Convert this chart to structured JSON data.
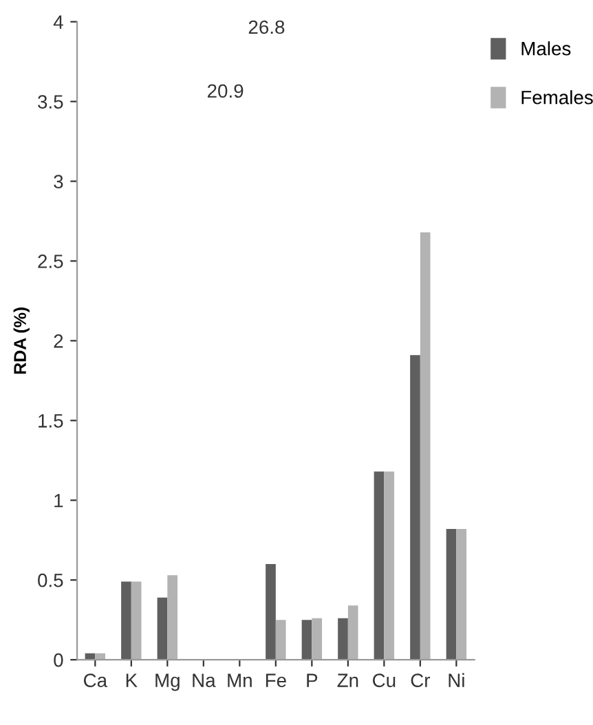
{
  "chart_data": {
    "type": "bar",
    "ylabel": "RDA (%)",
    "categories": [
      "Ca",
      "K",
      "Mg",
      "Na",
      "Mn",
      "Fe",
      "P",
      "Zn",
      "Cu",
      "Cr",
      "Ni"
    ],
    "series": [
      {
        "name": "Males",
        "color": "#5f5f5f",
        "values": [
          0.04,
          0.49,
          0.39,
          0,
          null,
          0.6,
          0.25,
          0.26,
          1.18,
          1.91,
          0.82
        ]
      },
      {
        "name": "Females",
        "color": "#b3b3b3",
        "values": [
          0.04,
          0.49,
          0.53,
          0,
          null,
          0.25,
          0.26,
          0.34,
          1.18,
          2.68,
          0.82
        ]
      }
    ],
    "annotations": [
      "20.9",
      "26.8"
    ],
    "ylim": [
      0,
      4
    ],
    "yticks": [
      0,
      0.5,
      1,
      1.5,
      2,
      2.5,
      3,
      3.5,
      4
    ],
    "grid": false,
    "legend": "top right"
  }
}
